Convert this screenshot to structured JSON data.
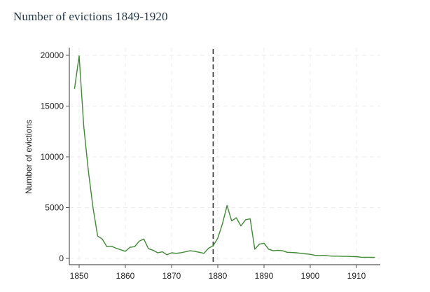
{
  "page": {
    "title": "Number of evictions 1849-1920"
  },
  "chart_data": {
    "type": "line",
    "title": "Number of evictions 1849-1920",
    "xlabel": "",
    "ylabel": "Number of evictions",
    "xlim": [
      1848,
      1915
    ],
    "ylim": [
      0,
      20000
    ],
    "x_ticks": [
      1850,
      1860,
      1870,
      1880,
      1890,
      1900,
      1910
    ],
    "y_ticks": [
      0,
      5000,
      10000,
      15000,
      20000
    ],
    "grid": true,
    "legend": null,
    "line_color": "#3f8a34",
    "annotations": [
      {
        "type": "vertical-dashed-line",
        "x": 1879,
        "color": "#333333"
      }
    ],
    "series": [
      {
        "name": "Number of evictions",
        "x": [
          1849,
          1850,
          1851,
          1852,
          1853,
          1854,
          1855,
          1856,
          1857,
          1858,
          1859,
          1860,
          1861,
          1862,
          1863,
          1864,
          1865,
          1866,
          1867,
          1868,
          1869,
          1870,
          1871,
          1872,
          1873,
          1874,
          1875,
          1876,
          1877,
          1878,
          1879,
          1880,
          1881,
          1882,
          1883,
          1884,
          1885,
          1886,
          1887,
          1888,
          1889,
          1890,
          1891,
          1892,
          1893,
          1894,
          1895,
          1896,
          1897,
          1898,
          1899,
          1900,
          1901,
          1902,
          1903,
          1904,
          1905,
          1906,
          1907,
          1908,
          1909,
          1910,
          1911,
          1912,
          1913,
          1914
        ],
        "values": [
          16700,
          19950,
          13000,
          8600,
          5000,
          2200,
          1900,
          1150,
          1200,
          1000,
          850,
          700,
          1100,
          1150,
          1700,
          1900,
          950,
          800,
          550,
          650,
          350,
          550,
          500,
          550,
          650,
          750,
          700,
          600,
          500,
          1000,
          1250,
          2000,
          3400,
          5200,
          3700,
          4000,
          3200,
          3800,
          3900,
          900,
          1400,
          1500,
          900,
          750,
          800,
          750,
          600,
          580,
          550,
          500,
          450,
          400,
          300,
          280,
          300,
          250,
          220,
          220,
          200,
          200,
          180,
          170,
          120,
          110,
          110,
          100
        ]
      }
    ]
  }
}
